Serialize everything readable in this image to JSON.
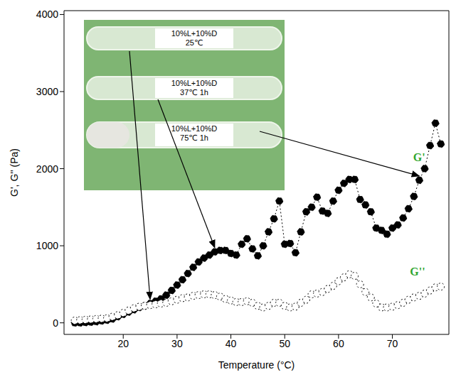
{
  "chart_data": {
    "type": "line",
    "x_label": "Temperature (°C)",
    "y_label": "G', G'' (Pa)",
    "x": [
      11,
      12,
      13,
      14,
      15,
      16,
      17,
      18,
      19,
      20,
      21,
      22,
      23,
      24,
      25,
      26,
      27,
      28,
      29,
      30,
      31,
      32,
      33,
      34,
      35,
      36,
      37,
      38,
      39,
      40,
      41,
      42,
      43,
      44,
      45,
      46,
      47,
      48,
      49,
      50,
      51,
      52,
      53,
      54,
      55,
      56,
      57,
      58,
      59,
      60,
      61,
      62,
      63,
      64,
      65,
      66,
      67,
      68,
      69,
      70,
      71,
      72,
      73,
      74,
      75,
      76,
      77,
      78,
      79
    ],
    "series": [
      {
        "name": "G'",
        "color": "#000000",
        "marker": "filled_circle",
        "line_style": "dotted",
        "values": [
          0,
          0,
          5,
          10,
          15,
          25,
          35,
          50,
          80,
          110,
          140,
          170,
          200,
          220,
          250,
          280,
          310,
          360,
          420,
          490,
          560,
          640,
          720,
          790,
          840,
          880,
          920,
          940,
          940,
          900,
          880,
          1020,
          1090,
          960,
          870,
          1000,
          1180,
          1350,
          1580,
          1020,
          1030,
          910,
          1180,
          1440,
          1500,
          1630,
          1450,
          1420,
          1580,
          1720,
          1810,
          1860,
          1860,
          1600,
          1530,
          1440,
          1230,
          1200,
          1150,
          1230,
          1270,
          1360,
          1480,
          1640,
          1850,
          2000,
          2300,
          2590,
          2320
        ]
      },
      {
        "name": "G''",
        "color": "#000000",
        "marker": "open_circle",
        "line_style": "dotted",
        "values": [
          30,
          35,
          40,
          45,
          50,
          55,
          60,
          80,
          100,
          130,
          160,
          190,
          210,
          220,
          230,
          240,
          250,
          260,
          280,
          300,
          320,
          330,
          350,
          360,
          370,
          370,
          360,
          340,
          310,
          290,
          270,
          270,
          280,
          260,
          220,
          200,
          220,
          260,
          260,
          220,
          200,
          210,
          260,
          300,
          370,
          380,
          400,
          440,
          480,
          540,
          590,
          630,
          610,
          500,
          400,
          330,
          250,
          200,
          200,
          210,
          230,
          260,
          300,
          330,
          350,
          380,
          420,
          460,
          470
        ]
      }
    ],
    "xlim": [
      9,
      80.5
    ],
    "xticks": [
      20,
      30,
      40,
      50,
      60,
      70
    ],
    "ylim": [
      -150,
      4050
    ],
    "yticks": [
      0,
      1000,
      2000,
      3000,
      4000
    ],
    "annotations": [
      [
        "10%L+10%D",
        "25℃"
      ],
      [
        "10%L+10%D",
        "37℃ 1h"
      ],
      [
        "10%L+10%D",
        "75℃ 1h"
      ]
    ],
    "annotation_x": [
      25,
      37,
      75
    ]
  }
}
